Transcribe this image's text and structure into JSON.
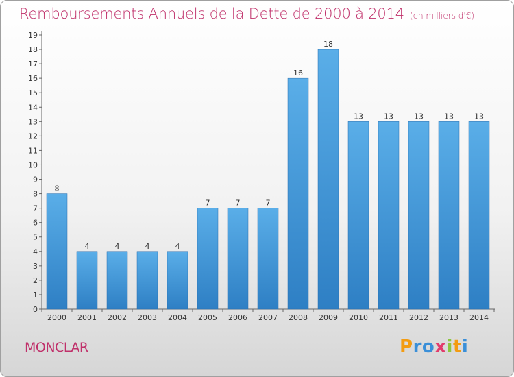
{
  "header": {
    "title": "Remboursements Annuels de la Dette de 2000 à 2014",
    "unit": "(en milliers d'€)"
  },
  "footer": {
    "commune": "MONCLAR",
    "logo_letters": [
      "P",
      "r",
      "o",
      "x",
      "i",
      "t",
      "i"
    ],
    "logo_colors": [
      "#f39c12",
      "#3a8fd8",
      "#3a8fd8",
      "#e23c6c",
      "#8dc63f",
      "#f39c12",
      "#3a8fd8"
    ]
  },
  "colors": {
    "bar_top": "#5aaee8",
    "bar_bottom": "#2e7fc4",
    "title": "#c0306a"
  },
  "chart_data": {
    "type": "bar",
    "categories": [
      "2000",
      "2001",
      "2002",
      "2003",
      "2004",
      "2005",
      "2006",
      "2007",
      "2008",
      "2009",
      "2010",
      "2011",
      "2012",
      "2013",
      "2014"
    ],
    "values": [
      8,
      4,
      4,
      4,
      4,
      7,
      7,
      7,
      16,
      18,
      13,
      13,
      13,
      13,
      13
    ],
    "data_labels": [
      "8",
      "4",
      "4",
      "4",
      "4",
      "7",
      "7",
      "7",
      "16",
      "18",
      "13",
      "13",
      "13",
      "13",
      "13"
    ],
    "yticks": [
      "0",
      "1",
      "2",
      "3",
      "4",
      "5",
      "6",
      "7",
      "8",
      "9",
      "10",
      "11",
      "12",
      "13",
      "14",
      "15",
      "16",
      "17",
      "18",
      "19"
    ],
    "ylim": [
      0,
      19
    ],
    "grid": false
  }
}
